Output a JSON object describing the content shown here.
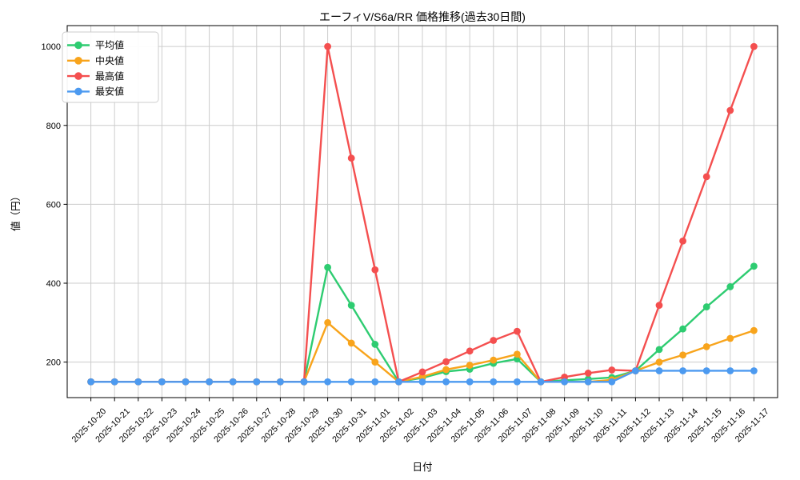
{
  "title": "エーフィV/S6a/RR 価格推移(過去30日間)",
  "colors": {
    "background": "#ffffff",
    "grid": "#cccccc",
    "axis": "#000000",
    "text": "#000000",
    "legend_border": "#cccccc",
    "average": "#2ecc71",
    "median": "#f8a41c",
    "max": "#f44f4f",
    "min": "#4c9af0"
  },
  "chart_data": {
    "type": "line",
    "title": "エーフィV/S6a/RR 価格推移(過去30日間)",
    "xlabel": "日付",
    "ylabel": "値（円）",
    "legend_position": "upper-left",
    "grid": true,
    "ylim": [
      110,
      1053
    ],
    "yticks": [
      200,
      400,
      600,
      800,
      1000
    ],
    "x": [
      "2025-10-20",
      "2025-10-21",
      "2025-10-22",
      "2025-10-23",
      "2025-10-24",
      "2025-10-25",
      "2025-10-26",
      "2025-10-27",
      "2025-10-28",
      "2025-10-29",
      "2025-10-30",
      "2025-10-31",
      "2025-11-01",
      "2025-11-02",
      "2025-11-03",
      "2025-11-04",
      "2025-11-05",
      "2025-11-06",
      "2025-11-07",
      "2025-11-08",
      "2025-11-09",
      "2025-11-10",
      "2025-11-11",
      "2025-11-12",
      "2025-11-13",
      "2025-11-14",
      "2025-11-15",
      "2025-11-16",
      "2025-11-17"
    ],
    "series": [
      {
        "name": "平均値",
        "color": "#2ecc71",
        "values": [
          150,
          150,
          150,
          150,
          150,
          150,
          150,
          150,
          150,
          150,
          440,
          344,
          245,
          150,
          160,
          176,
          182,
          197,
          208,
          150,
          154,
          157,
          161,
          178,
          232,
          284,
          340,
          391,
          443
        ]
      },
      {
        "name": "中央値",
        "color": "#f8a41c",
        "values": [
          150,
          150,
          150,
          150,
          150,
          150,
          150,
          150,
          150,
          150,
          300,
          248,
          200,
          150,
          163,
          181,
          192,
          205,
          220,
          150,
          150,
          150,
          155,
          178,
          200,
          218,
          239,
          260,
          280
        ]
      },
      {
        "name": "最高値",
        "color": "#f44f4f",
        "values": [
          150,
          150,
          150,
          150,
          150,
          150,
          150,
          150,
          150,
          150,
          1000,
          717,
          434,
          150,
          175,
          201,
          228,
          255,
          278,
          150,
          162,
          172,
          180,
          178,
          344,
          507,
          670,
          838,
          1000
        ]
      },
      {
        "name": "最安値",
        "color": "#4c9af0",
        "values": [
          150,
          150,
          150,
          150,
          150,
          150,
          150,
          150,
          150,
          150,
          150,
          150,
          150,
          150,
          150,
          150,
          150,
          150,
          150,
          150,
          150,
          150,
          150,
          178,
          178,
          178,
          178,
          178,
          178
        ]
      }
    ]
  }
}
